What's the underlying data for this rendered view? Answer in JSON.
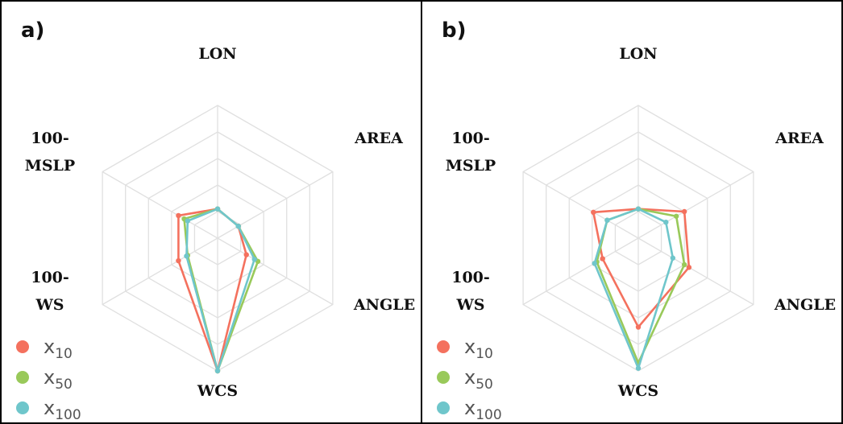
{
  "chart_data": [
    {
      "type": "radar",
      "panel_label": "a)",
      "axes": [
        [
          "LON"
        ],
        [
          "AREA"
        ],
        [
          "ANGLE"
        ],
        [
          "WCS"
        ],
        [
          "100-",
          "WS"
        ],
        [
          "100-",
          "MSLP"
        ]
      ],
      "rmax": 100,
      "rings": 5,
      "grid": true,
      "legend_position": "bottom-left",
      "series": [
        {
          "name": "x10",
          "color": "#f4715e",
          "values": [
            22,
            18,
            25,
            100,
            34,
            34
          ]
        },
        {
          "name": "x50",
          "color": "#99c95a",
          "values": [
            22,
            18,
            35,
            100,
            26,
            29
          ]
        },
        {
          "name": "x100",
          "color": "#6fc6cb",
          "values": [
            22,
            18,
            32,
            100,
            27,
            26
          ]
        }
      ]
    },
    {
      "type": "radar",
      "panel_label": "b)",
      "axes": [
        [
          "LON"
        ],
        [
          "AREA"
        ],
        [
          "ANGLE"
        ],
        [
          "WCS"
        ],
        [
          "100-",
          "WS"
        ],
        [
          "100-",
          "MSLP"
        ]
      ],
      "rmax": 100,
      "rings": 5,
      "grid": true,
      "legend_position": "bottom-left",
      "series": [
        {
          "name": "x10",
          "color": "#f4715e",
          "values": [
            22,
            40,
            44,
            67,
            31,
            39
          ]
        },
        {
          "name": "x50",
          "color": "#99c95a",
          "values": [
            22,
            33,
            40,
            94,
            36,
            27
          ]
        },
        {
          "name": "x100",
          "color": "#6fc6cb",
          "values": [
            22,
            24,
            30,
            98,
            38,
            27
          ]
        }
      ]
    }
  ],
  "legend": [
    {
      "base": "x",
      "sub": "10"
    },
    {
      "base": "x",
      "sub": "50"
    },
    {
      "base": "x",
      "sub": "100"
    }
  ]
}
